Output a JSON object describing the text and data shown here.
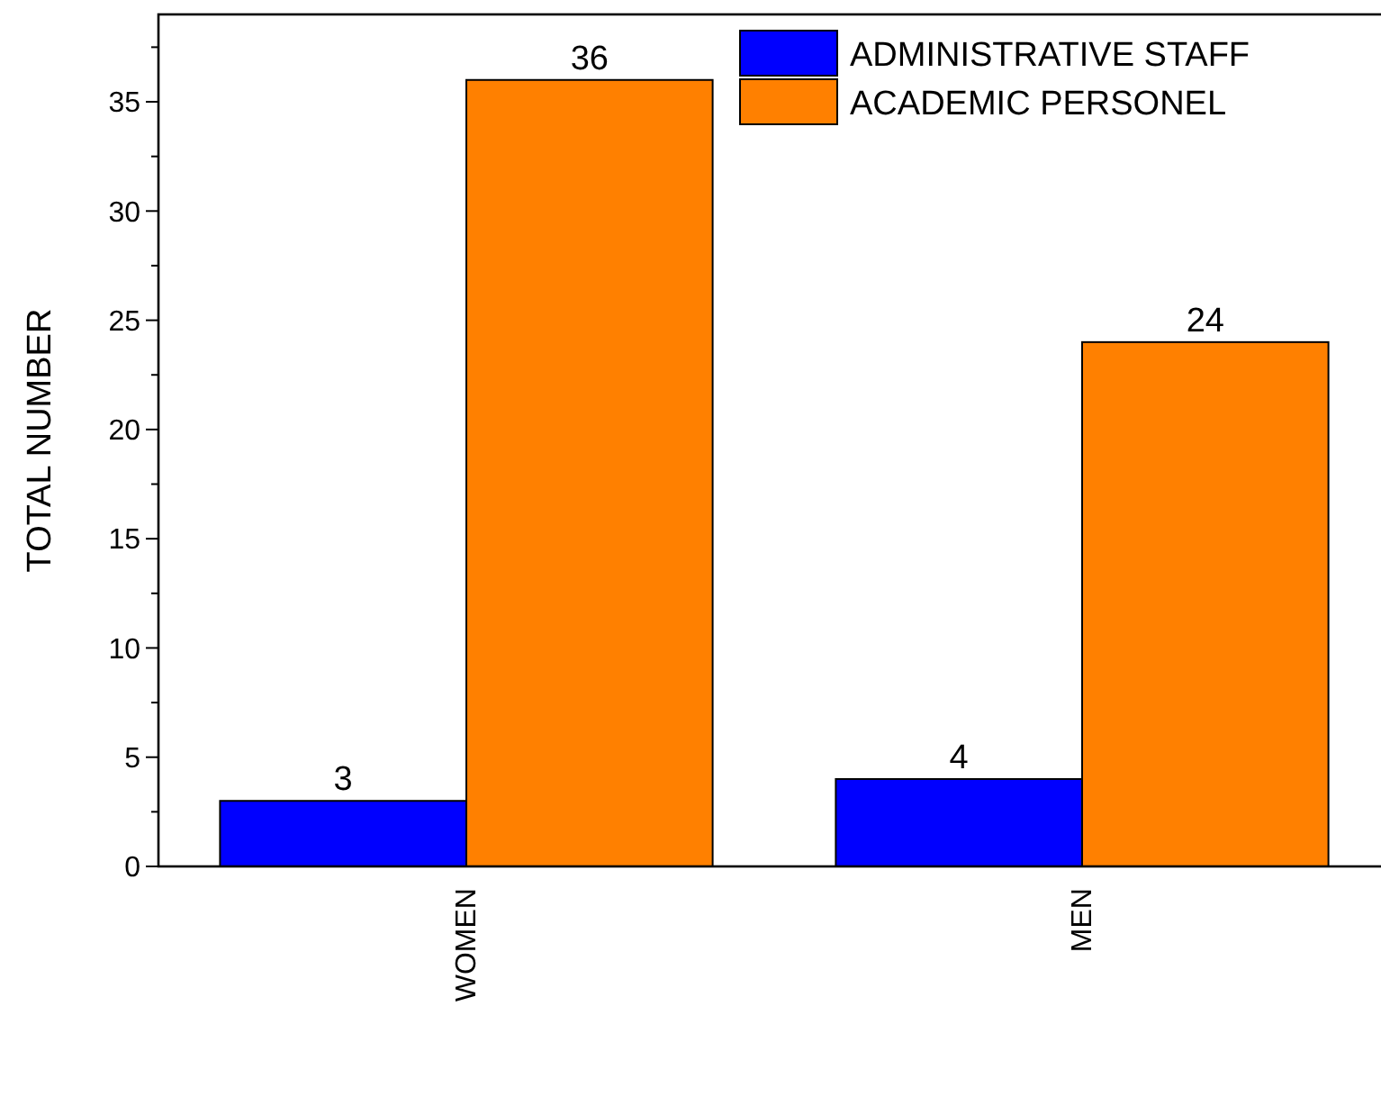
{
  "chart_data": {
    "type": "bar",
    "ylabel": "TOTAL NUMBER",
    "categories": [
      "WOMEN",
      "MEN"
    ],
    "series": [
      {
        "name": "ADMINISTRATIVE STAFF",
        "color": "#0000ff",
        "values": [
          3,
          4
        ]
      },
      {
        "name": "ACADEMIC PERSONEL",
        "color": "#ff8000",
        "values": [
          36,
          24
        ]
      }
    ],
    "ylim": [
      0,
      39
    ],
    "yticks": [
      0,
      {
        "value": 2.5,
        "label": null
      },
      5,
      {
        "value": 7.5,
        "label": null
      },
      10,
      {
        "value": 12.5,
        "label": null
      },
      15,
      {
        "value": 17.5,
        "label": null
      },
      20,
      {
        "value": 22.5,
        "label": null
      },
      25,
      {
        "value": 27.5,
        "label": null
      },
      30,
      {
        "value": 32.5,
        "label": null
      },
      35,
      {
        "value": 37.5,
        "label": null
      }
    ],
    "data_labels": true,
    "legend": "top right",
    "grid": false
  }
}
